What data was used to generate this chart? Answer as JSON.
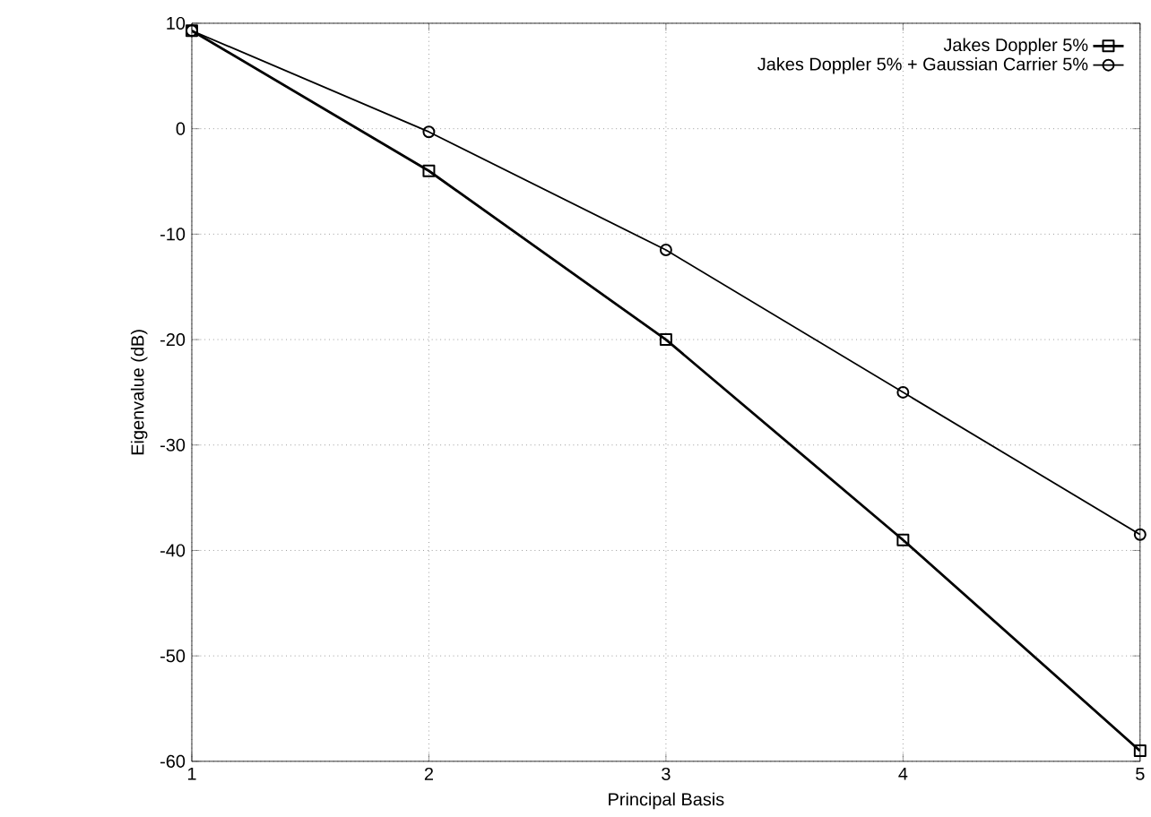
{
  "chart_data": {
    "type": "line",
    "xlabel": "Principal Basis",
    "ylabel": "Eigenvalue (dB)",
    "x": [
      1,
      2,
      3,
      4,
      5
    ],
    "series": [
      {
        "name": "Jakes Doppler 5%",
        "color": "#000000",
        "marker": "square",
        "values": [
          9.3,
          -4,
          -20,
          -39,
          -59
        ]
      },
      {
        "name": "Jakes Doppler 5% + Gaussian Carrier 5%",
        "color": "#000000",
        "marker": "circle",
        "values": [
          9.3,
          -0.3,
          -11.5,
          -25,
          -38.5
        ]
      }
    ],
    "xlim": [
      1,
      5
    ],
    "xticks": [
      1,
      2,
      3,
      4,
      5
    ],
    "ylim": [
      -60,
      10
    ],
    "yticks": [
      -60,
      -50,
      -40,
      -30,
      -20,
      -10,
      0,
      10
    ],
    "grid": true,
    "legend": "top right",
    "line_style": "solid"
  }
}
